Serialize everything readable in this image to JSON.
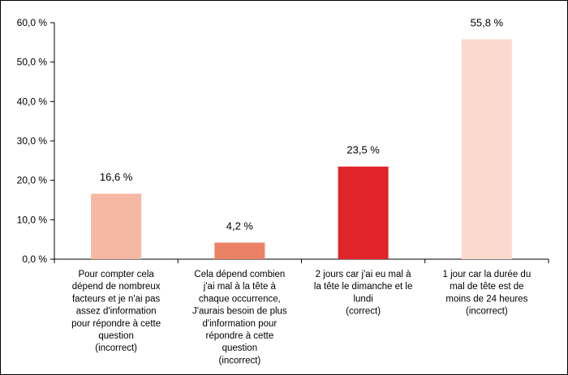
{
  "chart_data": {
    "type": "bar",
    "title": "",
    "xlabel": "",
    "ylabel": "",
    "ylim": [
      0,
      60
    ],
    "y_ticks": [
      0,
      10,
      20,
      30,
      40,
      50,
      60
    ],
    "y_tick_labels": [
      "0,0 %",
      "10,0 %",
      "20,0 %",
      "30,0 %",
      "40,0 %",
      "50,0 %",
      "60,0 %"
    ],
    "grid": false,
    "legend": "none",
    "categories": [
      [
        "Pour compter cela",
        "dépend de nombreux",
        "facteurs et je n'ai pas",
        "assez d'information",
        "pour répondre à cette",
        "question",
        "(incorrect)"
      ],
      [
        "Cela dépend combien",
        "j'ai mal à la tête à",
        "chaque occurrence,",
        "J'aurais besoin de plus",
        "d'information pour",
        "répondre à cette",
        "question",
        "(incorrect)"
      ],
      [
        "2 jours car j'ai eu mal à",
        "la tête le dimanche et le",
        "lundi",
        "(correct)"
      ],
      [
        "1 jour car la durée du",
        "mal de tête est de",
        "moins de 24 heures",
        "(incorrect)"
      ]
    ],
    "values": [
      16.6,
      4.2,
      23.5,
      55.8
    ],
    "value_labels": [
      "16,6 %",
      "4,2 %",
      "23,5 %",
      "55,8 %"
    ],
    "colors": [
      "#f5b8a2",
      "#ec8265",
      "#e0242a",
      "#fbd9cc"
    ]
  }
}
